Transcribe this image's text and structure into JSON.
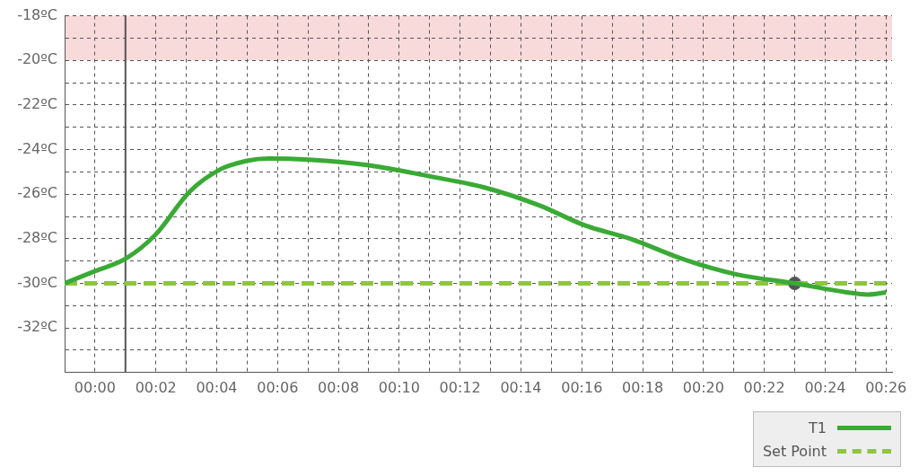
{
  "chart_data": {
    "type": "line",
    "xlim": [
      -1,
      26.2
    ],
    "ylim": [
      -34,
      -18
    ],
    "xticks": [
      {
        "value": -1,
        "label": null
      },
      {
        "value": 0,
        "label": "00:00"
      },
      {
        "value": 1,
        "label": null
      },
      {
        "value": 2,
        "label": "00:02"
      },
      {
        "value": 3,
        "label": null
      },
      {
        "value": 4,
        "label": "00:04"
      },
      {
        "value": 5,
        "label": null
      },
      {
        "value": 6,
        "label": "00:06"
      },
      {
        "value": 7,
        "label": null
      },
      {
        "value": 8,
        "label": "00:08"
      },
      {
        "value": 9,
        "label": null
      },
      {
        "value": 10,
        "label": "00:10"
      },
      {
        "value": 11,
        "label": null
      },
      {
        "value": 12,
        "label": "00:12"
      },
      {
        "value": 13,
        "label": null
      },
      {
        "value": 14,
        "label": "00:14"
      },
      {
        "value": 15,
        "label": null
      },
      {
        "value": 16,
        "label": "00:16"
      },
      {
        "value": 17,
        "label": null
      },
      {
        "value": 18,
        "label": "00:18"
      },
      {
        "value": 19,
        "label": null
      },
      {
        "value": 20,
        "label": "00:20"
      },
      {
        "value": 21,
        "label": null
      },
      {
        "value": 22,
        "label": "00:22"
      },
      {
        "value": 23,
        "label": null
      },
      {
        "value": 24,
        "label": "00:24"
      },
      {
        "value": 25,
        "label": null
      },
      {
        "value": 26,
        "label": "00:26"
      }
    ],
    "yticks": [
      {
        "value": -34,
        "label": null
      },
      {
        "value": -33,
        "label": null
      },
      {
        "value": -32,
        "label": "-32ºC"
      },
      {
        "value": -31,
        "label": null
      },
      {
        "value": -30,
        "label": "-30ºC"
      },
      {
        "value": -29,
        "label": null
      },
      {
        "value": -28,
        "label": "-28ºC"
      },
      {
        "value": -27,
        "label": null
      },
      {
        "value": -26,
        "label": "-26ºC"
      },
      {
        "value": -25,
        "label": null
      },
      {
        "value": -24,
        "label": "-24ºC"
      },
      {
        "value": -23,
        "label": null
      },
      {
        "value": -22,
        "label": "-22ºC"
      },
      {
        "value": -21,
        "label": null
      },
      {
        "value": -20,
        "label": "-20ºC"
      },
      {
        "value": -19,
        "label": null
      },
      {
        "value": -18,
        "label": "-18ºC"
      }
    ],
    "grid": true,
    "legend": "bottom right",
    "marker": "none",
    "series": [
      {
        "name": "T1",
        "color": "#3aaa35",
        "line_style": "solid",
        "x": [
          -1,
          0,
          1,
          2,
          3.1,
          4.1,
          5,
          5.7,
          7,
          9,
          11,
          12.8,
          14.6,
          16.1,
          17.6,
          19.3,
          21.1,
          23,
          24.7,
          25.4,
          26
        ],
        "values": [
          -30,
          -29.45,
          -28.9,
          -27.8,
          -25.9,
          -24.9,
          -24.5,
          -24.4,
          -24.45,
          -24.7,
          -25.2,
          -25.7,
          -26.5,
          -27.4,
          -28,
          -28.9,
          -29.6,
          -30,
          -30.4,
          -30.5,
          -30.4
        ]
      },
      {
        "name": "Set Point",
        "color": "#8dc63f",
        "line_style": "dashed",
        "x": [
          -1,
          26
        ],
        "values": [
          -30,
          -30
        ]
      },
      {
        "type": "scatter",
        "color": "#555555",
        "marker": "circle",
        "x": [
          23
        ],
        "values": [
          -30
        ]
      }
    ],
    "bands": [
      {
        "axis": "y",
        "from": -20,
        "to": -18,
        "color": "#f9dadb"
      }
    ],
    "ref_lines": [
      {
        "axis": "x",
        "value": 1,
        "color": "#555555",
        "line_style": "solid"
      }
    ]
  }
}
